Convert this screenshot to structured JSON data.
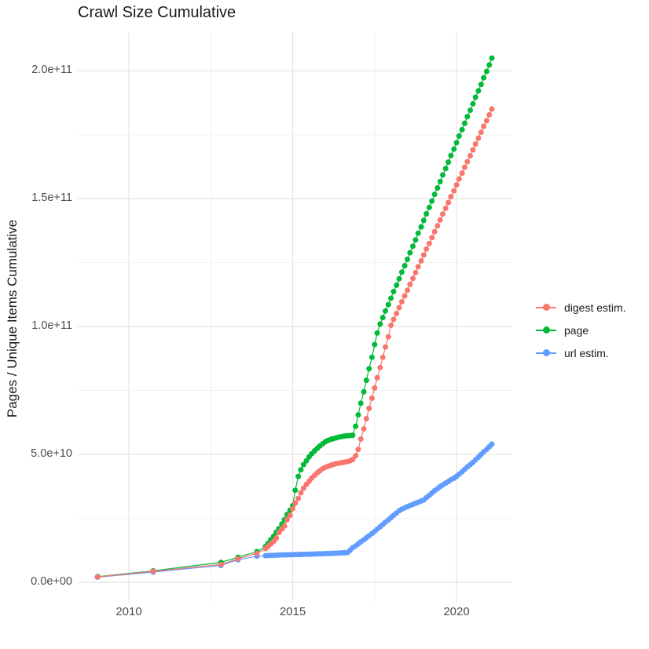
{
  "figure": {
    "title": "Crawl Size Cumulative",
    "background": "#FFFFFF"
  },
  "axes": {
    "y": {
      "title": "Pages / Unique Items Cumulative",
      "ticks": [
        {
          "label": "0.0e+00",
          "value": 0
        },
        {
          "label": "5.0e+10",
          "value": 50
        },
        {
          "label": "1.0e+11",
          "value": 100
        },
        {
          "label": "1.5e+11",
          "value": 150
        },
        {
          "label": "2.0e+11",
          "value": 200
        }
      ],
      "minor": [
        25,
        75,
        125,
        175
      ]
    },
    "x": {
      "ticks": [
        {
          "label": "2010",
          "value": 2010
        },
        {
          "label": "2015",
          "value": 2015
        },
        {
          "label": "2020",
          "value": 2020
        }
      ],
      "minor": [
        2012.5,
        2017.5
      ]
    }
  },
  "legend": {
    "items": [
      {
        "label": "digest estim.",
        "series": "digest estim."
      },
      {
        "label": "page",
        "series": "page"
      },
      {
        "label": "url estim.",
        "series": "url estim."
      }
    ]
  },
  "colors": {
    "grid_major": "#e5e5e5",
    "grid_minor": "#f1f1f1",
    "tick_text": "#4d4d4d",
    "text": "#1a1a1a"
  },
  "chart_data": {
    "type": "scatter",
    "title": "Crawl Size Cumulative",
    "xlabel": "",
    "ylabel": "Pages / Unique Items Cumulative",
    "x_unit": "year (decimal)",
    "value_unit_multiplier": 1000000000,
    "xlim": [
      2008.4,
      2021.7
    ],
    "ylim": [
      0,
      223000000000
    ],
    "grid": true,
    "legend_position": "right",
    "marker": "filled-circle-with-line",
    "draw_order": [
      "page",
      "url estim.",
      "digest estim."
    ],
    "series": [
      {
        "name": "digest estim.",
        "color": "#F8766D",
        "points": [
          [
            2009.04,
            2.1
          ],
          [
            2010.74,
            4.3
          ],
          [
            2012.81,
            7.0
          ],
          [
            2013.33,
            9.2
          ],
          [
            2013.91,
            11.3
          ],
          [
            2014.17,
            13.2
          ],
          [
            2014.25,
            14.1
          ],
          [
            2014.33,
            15.0
          ],
          [
            2014.42,
            16.0
          ],
          [
            2014.5,
            17.3
          ],
          [
            2014.58,
            19.5
          ],
          [
            2014.67,
            20.8
          ],
          [
            2014.75,
            22.0
          ],
          [
            2014.83,
            24.5
          ],
          [
            2014.92,
            26.2
          ],
          [
            2015.0,
            28.8
          ],
          [
            2015.08,
            31.0
          ],
          [
            2015.17,
            32.8
          ],
          [
            2015.25,
            35.0
          ],
          [
            2015.33,
            36.8
          ],
          [
            2015.42,
            38.3
          ],
          [
            2015.5,
            39.5
          ],
          [
            2015.58,
            40.8
          ],
          [
            2015.67,
            41.8
          ],
          [
            2015.75,
            42.8
          ],
          [
            2015.83,
            43.6
          ],
          [
            2015.92,
            44.5
          ],
          [
            2016.0,
            45.0
          ],
          [
            2016.08,
            45.4
          ],
          [
            2016.17,
            45.8
          ],
          [
            2016.25,
            46.1
          ],
          [
            2016.33,
            46.4
          ],
          [
            2016.42,
            46.6
          ],
          [
            2016.5,
            46.8
          ],
          [
            2016.58,
            47.0
          ],
          [
            2016.67,
            47.2
          ],
          [
            2016.75,
            47.5
          ],
          [
            2016.83,
            48.0
          ],
          [
            2016.92,
            49.5
          ],
          [
            2017.0,
            52.0
          ],
          [
            2017.08,
            56.0
          ],
          [
            2017.17,
            60.0
          ],
          [
            2017.25,
            64.0
          ],
          [
            2017.33,
            68.0
          ],
          [
            2017.42,
            72.0
          ],
          [
            2017.5,
            76.0
          ],
          [
            2017.58,
            80.0
          ],
          [
            2017.67,
            84.0
          ],
          [
            2017.75,
            88.0
          ],
          [
            2017.83,
            92.0
          ],
          [
            2017.92,
            96.0
          ],
          [
            2018.0,
            100.5
          ],
          [
            2018.08,
            102.8
          ],
          [
            2018.17,
            105.1
          ],
          [
            2018.25,
            107.4
          ],
          [
            2018.33,
            109.7
          ],
          [
            2018.42,
            112.0
          ],
          [
            2018.5,
            114.2
          ],
          [
            2018.58,
            116.5
          ],
          [
            2018.67,
            118.8
          ],
          [
            2018.75,
            121.1
          ],
          [
            2018.83,
            123.4
          ],
          [
            2018.92,
            125.7
          ],
          [
            2019.0,
            128.0
          ],
          [
            2019.08,
            130.3
          ],
          [
            2019.17,
            132.5
          ],
          [
            2019.25,
            134.8
          ],
          [
            2019.33,
            137.1
          ],
          [
            2019.42,
            139.4
          ],
          [
            2019.5,
            141.7
          ],
          [
            2019.58,
            144.0
          ],
          [
            2019.67,
            146.3
          ],
          [
            2019.75,
            148.5
          ],
          [
            2019.83,
            150.8
          ],
          [
            2019.92,
            153.1
          ],
          [
            2020.0,
            155.4
          ],
          [
            2020.08,
            157.7
          ],
          [
            2020.17,
            160.0
          ],
          [
            2020.25,
            162.3
          ],
          [
            2020.33,
            164.5
          ],
          [
            2020.42,
            166.8
          ],
          [
            2020.5,
            169.1
          ],
          [
            2020.58,
            171.4
          ],
          [
            2020.67,
            173.7
          ],
          [
            2020.75,
            176.0
          ],
          [
            2020.83,
            178.3
          ],
          [
            2020.92,
            180.5
          ],
          [
            2021.0,
            182.8
          ],
          [
            2021.08,
            185.1
          ]
        ]
      },
      {
        "name": "page",
        "color": "#00BA38",
        "points": [
          [
            2009.05,
            2.2
          ],
          [
            2010.74,
            4.5
          ],
          [
            2012.81,
            7.8
          ],
          [
            2013.33,
            9.8
          ],
          [
            2013.91,
            12.0
          ],
          [
            2014.17,
            14.0
          ],
          [
            2014.25,
            15.2
          ],
          [
            2014.33,
            16.6
          ],
          [
            2014.42,
            18.0
          ],
          [
            2014.5,
            19.6
          ],
          [
            2014.58,
            21.0
          ],
          [
            2014.67,
            22.8
          ],
          [
            2014.75,
            24.5
          ],
          [
            2014.83,
            26.5
          ],
          [
            2014.92,
            28.2
          ],
          [
            2015.0,
            30.0
          ],
          [
            2015.08,
            36.0
          ],
          [
            2015.17,
            41.4
          ],
          [
            2015.25,
            44.0
          ],
          [
            2015.33,
            46.0
          ],
          [
            2015.42,
            47.5
          ],
          [
            2015.5,
            49.0
          ],
          [
            2015.58,
            50.3
          ],
          [
            2015.67,
            51.4
          ],
          [
            2015.75,
            52.4
          ],
          [
            2015.83,
            53.3
          ],
          [
            2015.92,
            54.2
          ],
          [
            2016.0,
            55.0
          ],
          [
            2016.08,
            55.5
          ],
          [
            2016.17,
            55.9
          ],
          [
            2016.25,
            56.2
          ],
          [
            2016.33,
            56.5
          ],
          [
            2016.42,
            56.8
          ],
          [
            2016.5,
            57.0
          ],
          [
            2016.58,
            57.2
          ],
          [
            2016.67,
            57.3
          ],
          [
            2016.75,
            57.4
          ],
          [
            2016.83,
            57.5
          ],
          [
            2016.92,
            61.0
          ],
          [
            2017.0,
            65.5
          ],
          [
            2017.08,
            70.0
          ],
          [
            2017.17,
            74.5
          ],
          [
            2017.25,
            79.0
          ],
          [
            2017.33,
            83.5
          ],
          [
            2017.42,
            88.0
          ],
          [
            2017.5,
            93.0
          ],
          [
            2017.58,
            97.5
          ],
          [
            2017.67,
            101.0
          ],
          [
            2017.75,
            103.5
          ],
          [
            2017.83,
            106.1
          ],
          [
            2017.92,
            108.6
          ],
          [
            2018.0,
            111.1
          ],
          [
            2018.08,
            113.7
          ],
          [
            2018.17,
            116.2
          ],
          [
            2018.25,
            118.7
          ],
          [
            2018.33,
            121.3
          ],
          [
            2018.42,
            123.8
          ],
          [
            2018.5,
            126.3
          ],
          [
            2018.58,
            128.9
          ],
          [
            2018.67,
            131.4
          ],
          [
            2018.75,
            133.9
          ],
          [
            2018.83,
            136.5
          ],
          [
            2018.92,
            139.0
          ],
          [
            2019.0,
            141.5
          ],
          [
            2019.08,
            144.1
          ],
          [
            2019.17,
            146.6
          ],
          [
            2019.25,
            149.1
          ],
          [
            2019.33,
            151.7
          ],
          [
            2019.42,
            154.2
          ],
          [
            2019.5,
            156.7
          ],
          [
            2019.58,
            159.3
          ],
          [
            2019.67,
            161.8
          ],
          [
            2019.75,
            164.3
          ],
          [
            2019.83,
            166.9
          ],
          [
            2019.92,
            169.4
          ],
          [
            2020.0,
            171.9
          ],
          [
            2020.08,
            174.5
          ],
          [
            2020.17,
            177.0
          ],
          [
            2020.25,
            179.5
          ],
          [
            2020.33,
            182.1
          ],
          [
            2020.42,
            184.6
          ],
          [
            2020.5,
            187.1
          ],
          [
            2020.58,
            189.7
          ],
          [
            2020.67,
            192.2
          ],
          [
            2020.75,
            194.7
          ],
          [
            2020.83,
            197.3
          ],
          [
            2020.92,
            199.8
          ],
          [
            2021.0,
            202.3
          ],
          [
            2021.08,
            205.0
          ]
        ]
      },
      {
        "name": "url estim.",
        "color": "#619CFF",
        "points": [
          [
            2009.04,
            2.0
          ],
          [
            2010.74,
            4.0
          ],
          [
            2012.81,
            6.6
          ],
          [
            2013.33,
            8.8
          ],
          [
            2013.91,
            10.2
          ],
          [
            2014.17,
            10.4
          ],
          [
            2014.25,
            10.45
          ],
          [
            2014.33,
            10.5
          ],
          [
            2014.42,
            10.55
          ],
          [
            2014.5,
            10.6
          ],
          [
            2014.58,
            10.65
          ],
          [
            2014.67,
            10.7
          ],
          [
            2014.75,
            10.72
          ],
          [
            2014.83,
            10.75
          ],
          [
            2014.92,
            10.78
          ],
          [
            2015.0,
            10.8
          ],
          [
            2015.08,
            10.83
          ],
          [
            2015.17,
            10.86
          ],
          [
            2015.25,
            10.9
          ],
          [
            2015.33,
            10.93
          ],
          [
            2015.42,
            10.96
          ],
          [
            2015.5,
            11.0
          ],
          [
            2015.58,
            11.03
          ],
          [
            2015.67,
            11.06
          ],
          [
            2015.75,
            11.1
          ],
          [
            2015.83,
            11.13
          ],
          [
            2015.92,
            11.16
          ],
          [
            2016.0,
            11.2
          ],
          [
            2016.08,
            11.25
          ],
          [
            2016.17,
            11.3
          ],
          [
            2016.25,
            11.35
          ],
          [
            2016.33,
            11.4
          ],
          [
            2016.42,
            11.45
          ],
          [
            2016.5,
            11.5
          ],
          [
            2016.58,
            11.55
          ],
          [
            2016.67,
            11.6
          ],
          [
            2016.75,
            12.5
          ],
          [
            2016.83,
            13.5
          ],
          [
            2016.92,
            14.2
          ],
          [
            2017.0,
            15.0
          ],
          [
            2017.08,
            15.8
          ],
          [
            2017.17,
            16.6
          ],
          [
            2017.25,
            17.4
          ],
          [
            2017.33,
            18.2
          ],
          [
            2017.42,
            19.1
          ],
          [
            2017.5,
            19.9
          ],
          [
            2017.58,
            20.8
          ],
          [
            2017.67,
            21.7
          ],
          [
            2017.75,
            22.6
          ],
          [
            2017.83,
            23.5
          ],
          [
            2017.92,
            24.4
          ],
          [
            2018.0,
            25.3
          ],
          [
            2018.08,
            26.2
          ],
          [
            2018.17,
            27.1
          ],
          [
            2018.25,
            28.0
          ],
          [
            2018.33,
            28.6
          ],
          [
            2018.42,
            29.1
          ],
          [
            2018.5,
            29.6
          ],
          [
            2018.58,
            30.0
          ],
          [
            2018.67,
            30.5
          ],
          [
            2018.75,
            30.9
          ],
          [
            2018.83,
            31.3
          ],
          [
            2018.92,
            31.8
          ],
          [
            2019.0,
            32.2
          ],
          [
            2019.08,
            33.1
          ],
          [
            2019.17,
            34.0
          ],
          [
            2019.25,
            34.9
          ],
          [
            2019.33,
            35.8
          ],
          [
            2019.42,
            36.6
          ],
          [
            2019.5,
            37.4
          ],
          [
            2019.58,
            38.1
          ],
          [
            2019.67,
            38.8
          ],
          [
            2019.75,
            39.4
          ],
          [
            2019.83,
            40.1
          ],
          [
            2019.92,
            40.7
          ],
          [
            2020.0,
            41.4
          ],
          [
            2020.08,
            42.3
          ],
          [
            2020.17,
            43.2
          ],
          [
            2020.25,
            44.2
          ],
          [
            2020.33,
            45.1
          ],
          [
            2020.42,
            46.0
          ],
          [
            2020.5,
            46.9
          ],
          [
            2020.58,
            47.9
          ],
          [
            2020.67,
            48.9
          ],
          [
            2020.75,
            50.0
          ],
          [
            2020.83,
            51.0
          ],
          [
            2020.92,
            52.0
          ],
          [
            2021.0,
            53.0
          ],
          [
            2021.08,
            54.0
          ]
        ]
      }
    ]
  }
}
